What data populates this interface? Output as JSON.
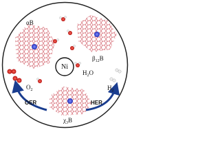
{
  "labels": {
    "alpha": [
      "α",
      "B"
    ],
    "beta": [
      "β",
      "12",
      "B"
    ],
    "center": "Ni",
    "water": [
      "H",
      "2",
      "O"
    ],
    "oxygen": [
      "O",
      "2"
    ],
    "oer": "OER",
    "her": "HER",
    "hydrogen": [
      "H",
      "2"
    ],
    "chi": [
      "χ",
      "3",
      "B"
    ]
  }
}
